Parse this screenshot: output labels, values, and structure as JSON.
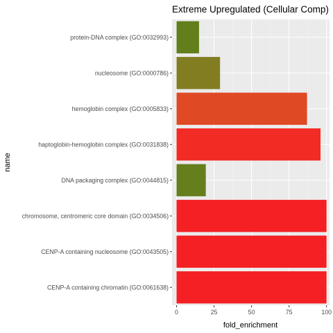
{
  "chart_data": {
    "type": "bar",
    "orientation": "horizontal",
    "title": "Extreme Upregulated (Cellular Comp)",
    "xlabel": "fold_enrichment",
    "ylabel": "name",
    "xlim": [
      -3,
      102
    ],
    "xticks": [
      0,
      25,
      50,
      75,
      100
    ],
    "grid": true,
    "legend": "none",
    "categories": [
      "protein-DNA complex (GO:0032993)",
      "nucleosome (GO:0000786)",
      "hemoglobin complex (GO:0005833)",
      "haptoglobin-hemoglobin complex (GO:0031838)",
      "DNA packaging complex (GO:0044815)",
      "chromosome, centromeric core domain (GO:0034506)",
      "CENP-A containing nucleosome (GO:0043505)",
      "CENP-A containing chromatin (GO:0061638)"
    ],
    "values": [
      15,
      29,
      87,
      96,
      19.5,
      100,
      100,
      100
    ],
    "colors": [
      "#627f1c",
      "#837d22",
      "#df4a24",
      "#f22b24",
      "#657f1d",
      "#f42024",
      "#f42024",
      "#f42024"
    ]
  },
  "colors": {
    "panel": "#ebebeb",
    "grid_major": "#ffffff",
    "grid_minor": "#f2f2f2"
  }
}
